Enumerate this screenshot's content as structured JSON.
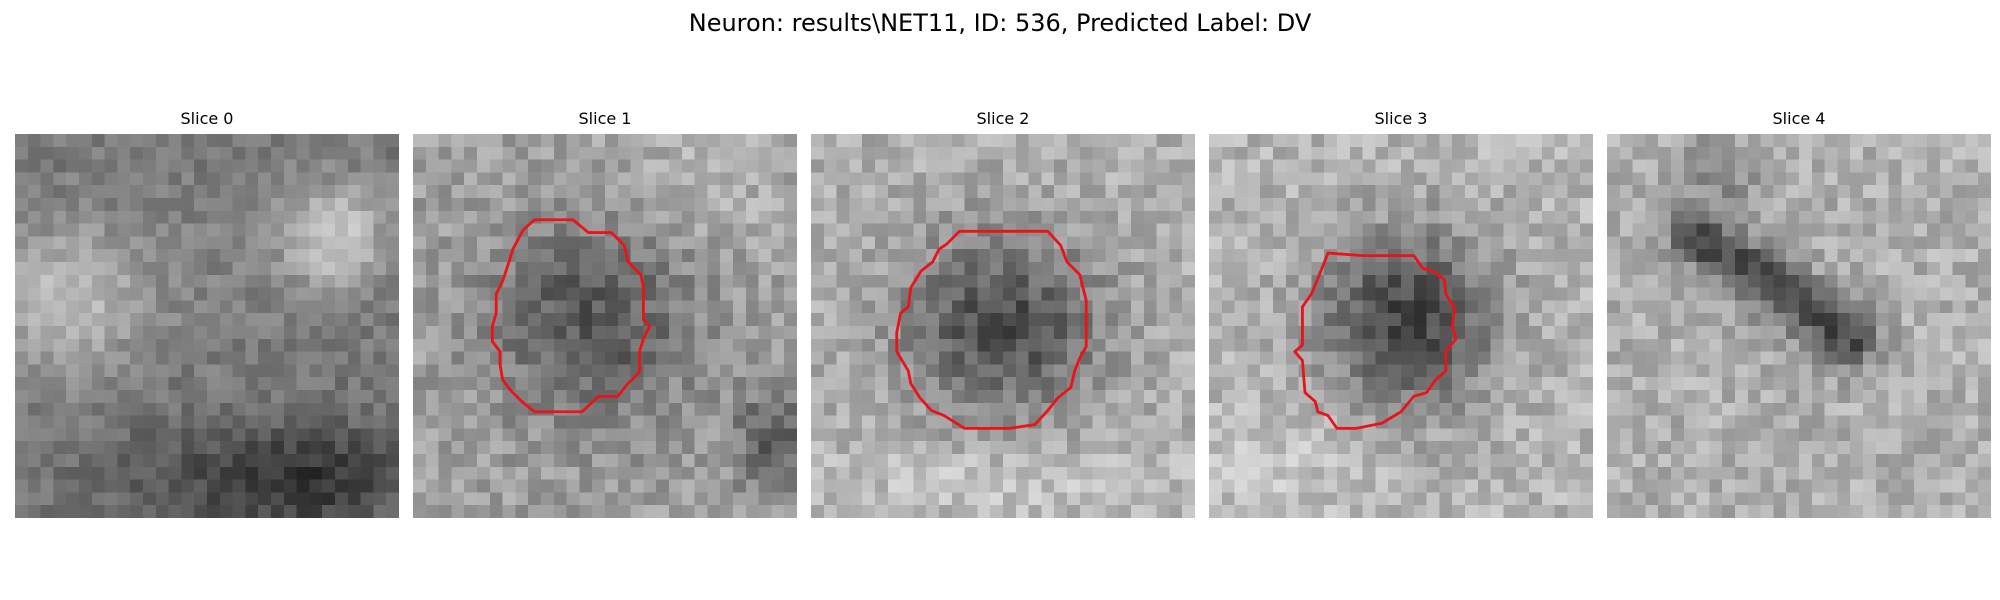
{
  "title": "Neuron: results\\NET11, ID: 536, Predicted Label: DV",
  "colors": {
    "contour": "#e8141a",
    "background": "#ffffff"
  },
  "image_grid": 30,
  "slices": [
    {
      "label": "Slice 0",
      "contour": false
    },
    {
      "label": "Slice 1",
      "contour": true
    },
    {
      "label": "Slice 2",
      "contour": true
    },
    {
      "label": "Slice 3",
      "contour": true
    },
    {
      "label": "Slice 4",
      "contour": false
    }
  ]
}
